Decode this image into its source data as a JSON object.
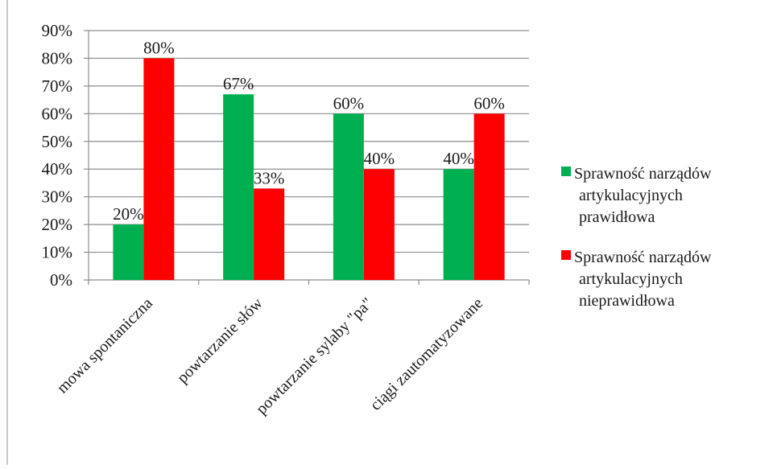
{
  "chart_data": {
    "type": "bar",
    "categories": [
      "mowa spontaniczna",
      "powtarzanie słów",
      "powtarzanie sylaby \"pa\"",
      "ciągi zautomatyzowane"
    ],
    "series": [
      {
        "name_lines": [
          "Sprawność narządów",
          "artykulacyjnych",
          "prawidłowa"
        ],
        "color": "#00b050",
        "values": [
          20,
          67,
          60,
          40
        ],
        "labels": [
          "20%",
          "67%",
          "60%",
          "40%"
        ]
      },
      {
        "name_lines": [
          "Sprawność narządów",
          "artykulacyjnych",
          "nieprawidłowa"
        ],
        "color": "#ff0000",
        "values": [
          80,
          33,
          40,
          60
        ],
        "labels": [
          "80%",
          "33%",
          "40%",
          "60%"
        ]
      }
    ],
    "y_ticks": [
      "0%",
      "10%",
      "20%",
      "30%",
      "40%",
      "50%",
      "60%",
      "70%",
      "80%",
      "90%"
    ],
    "ylim": [
      0,
      90
    ],
    "grid": true,
    "legend_position": "right"
  }
}
